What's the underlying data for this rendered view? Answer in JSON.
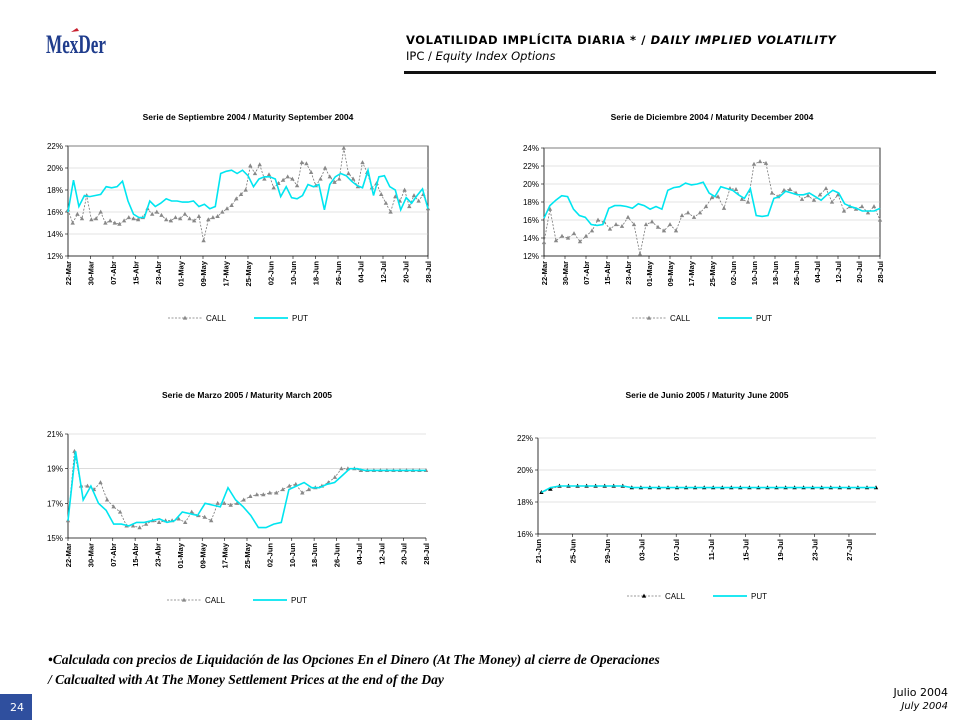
{
  "header": {
    "logo_text": "MexDer",
    "title_es": "VOLATILIDAD IMPLÍCITA DIARIA",
    "title_mark": " * / ",
    "title_en": "DAILY IMPLIED VOLATILITY",
    "sub_es": "IPC / ",
    "sub_en": "Equity Index Options"
  },
  "footnote": {
    "line1": "•Calculada con precios de Liquidación de las Opciones En el Dinero (At The Money) al cierre de Operaciones",
    "line2": " / Calcualted with At The Money Settlement Prices at the end of the Day"
  },
  "footer": {
    "date_es": "Julio 2004",
    "date_en": "July 2004",
    "page_number": "24"
  },
  "colors": {
    "put": "#00e5f0",
    "call_line": "#777777",
    "call_marker": "#888888",
    "call_marker_jun": "#000000",
    "logo_blue": "#1f3c8c",
    "logo_red": "#c8202f"
  },
  "chart_data": [
    {
      "type": "line",
      "title": "Serie de Septiembre 2004 / Maturity September 2004",
      "ylim": [
        12,
        22
      ],
      "y_ticks": [
        "12%",
        "14%",
        "16%",
        "18%",
        "20%",
        "22%"
      ],
      "x_ticks": [
        "22-Mar",
        "30-Mar",
        "07-Abr",
        "15-Abr",
        "23-Abr",
        "01-May",
        "09-May",
        "17-May",
        "25-May",
        "02-Jun",
        "10-Jun",
        "18-Jun",
        "26-Jun",
        "04-Jul",
        "12-Jul",
        "20-Jul",
        "28-Jul"
      ],
      "legend": [
        "CALL",
        "PUT"
      ],
      "series": [
        {
          "name": "CALL",
          "values": [
            16.2,
            15.0,
            15.8,
            15.4,
            17.5,
            15.3,
            15.4,
            16.0,
            15.0,
            15.2,
            15.0,
            14.9,
            15.2,
            15.5,
            15.4,
            15.3,
            15.5,
            16.3,
            15.8,
            16.0,
            15.7,
            15.3,
            15.2,
            15.5,
            15.4,
            15.8,
            15.4,
            15.2,
            15.6,
            13.4,
            15.3,
            15.5,
            15.6,
            16.0,
            16.3,
            16.6,
            17.2,
            17.6,
            18.0,
            20.2,
            19.5,
            20.3,
            19.0,
            19.4,
            18.2,
            18.6,
            18.9,
            19.2,
            19.0,
            18.4,
            20.5,
            20.4,
            19.6,
            18.4,
            19.0,
            20.0,
            19.2,
            18.7,
            19.0,
            21.8,
            19.5,
            19.0,
            18.3,
            20.5,
            19.6,
            18.2,
            18.6,
            17.6,
            16.8,
            16.0,
            17.4,
            17.0,
            18.0,
            16.5,
            17.5,
            17.0,
            17.6,
            16.3
          ],
          "x_start": "22-Mar",
          "x_end": "28-Jul"
        },
        {
          "name": "PUT",
          "values": [
            16.0,
            18.9,
            16.5,
            17.5,
            17.4,
            17.5,
            17.6,
            18.3,
            18.2,
            18.3,
            18.8,
            17.0,
            15.8,
            15.5,
            15.5,
            17.0,
            16.5,
            16.8,
            17.2,
            17.0,
            17.0,
            16.9,
            16.9,
            17.0,
            16.5,
            16.7,
            16.3,
            16.5,
            19.5,
            19.7,
            19.8,
            19.5,
            19.8,
            19.3,
            18.3,
            19.0,
            19.2,
            19.2,
            19.0,
            17.4,
            18.3,
            17.3,
            17.2,
            17.5,
            18.5,
            18.3,
            18.5,
            16.2,
            18.5,
            19.2,
            19.5,
            19.3,
            18.8,
            18.4,
            18.2,
            19.8,
            17.5,
            19.2,
            19.3,
            18.3,
            18.0,
            16.2,
            17.3,
            16.8,
            17.5,
            18.1,
            16.3
          ],
          "x_start": "22-Mar",
          "x_end": "28-Jul"
        }
      ]
    },
    {
      "type": "line",
      "title": "Serie de Diciembre 2004 / Maturity December 2004",
      "ylim": [
        12,
        24
      ],
      "y_ticks": [
        "12%",
        "14%",
        "16%",
        "18%",
        "20%",
        "22%",
        "24%"
      ],
      "x_ticks": [
        "22-Mar",
        "30-Mar",
        "07-Abr",
        "15-Abr",
        "23-Abr",
        "01-May",
        "09-May",
        "17-May",
        "25-May",
        "02-Jun",
        "10-Jun",
        "18-Jun",
        "26-Jun",
        "04-Jul",
        "12-Jul",
        "20-Jul",
        "28-Jul"
      ],
      "legend": [
        "CALL",
        "PUT"
      ],
      "series": [
        {
          "name": "CALL",
          "values": [
            13.5,
            17.2,
            13.7,
            14.2,
            14.0,
            14.5,
            13.6,
            14.2,
            14.8,
            16.0,
            15.8,
            15.0,
            15.5,
            15.3,
            16.3,
            15.5,
            12.2,
            15.5,
            15.8,
            15.2,
            14.8,
            15.5,
            14.8,
            16.5,
            16.8,
            16.3,
            16.8,
            17.5,
            18.5,
            18.6,
            17.3,
            19.5,
            19.4,
            18.3,
            18.0,
            22.2,
            22.5,
            22.3,
            19.0,
            18.6,
            19.3,
            19.4,
            19.0,
            18.3,
            18.7,
            18.2,
            18.8,
            19.5,
            18.0,
            18.8,
            17.0,
            17.5,
            17.2,
            17.5,
            16.8,
            17.5,
            16.0
          ],
          "x_start": "22-Mar",
          "x_end": "28-Jul"
        },
        {
          "name": "PUT",
          "values": [
            16.2,
            17.6,
            18.2,
            18.7,
            18.6,
            17.2,
            16.5,
            16.3,
            15.5,
            15.4,
            15.5,
            17.3,
            17.6,
            17.6,
            17.5,
            17.3,
            17.8,
            17.6,
            17.2,
            17.5,
            17.2,
            19.3,
            19.6,
            19.7,
            20.1,
            19.9,
            20.0,
            20.2,
            19.0,
            18.6,
            19.7,
            19.5,
            19.3,
            18.8,
            18.4,
            19.5,
            16.5,
            16.4,
            16.5,
            18.4,
            18.6,
            19.2,
            19.0,
            18.8,
            18.8,
            19.0,
            18.6,
            18.2,
            18.8,
            19.3,
            19.0,
            17.8,
            17.5,
            17.3,
            17.0,
            17.0,
            17.0,
            17.3
          ],
          "x_start": "22-Mar",
          "x_end": "28-Jul"
        }
      ]
    },
    {
      "type": "line",
      "title": "Serie de Marzo 2005 / Maturity March 2005",
      "ylim": [
        15,
        21
      ],
      "y_ticks": [
        "15%",
        "17%",
        "19%",
        "21%"
      ],
      "x_ticks": [
        "22-Mar",
        "30-Mar",
        "07-Abr",
        "15-Abr",
        "23-Abr",
        "01-May",
        "09-May",
        "17-May",
        "25-May",
        "02-Jun",
        "10-Jun",
        "18-Jun",
        "26-Jun",
        "04-Jul",
        "12-Jul",
        "20-Jul",
        "28-Jul"
      ],
      "legend": [
        "CALL",
        "PUT"
      ],
      "series": [
        {
          "name": "CALL",
          "values": [
            16.0,
            20.0,
            18.0,
            18.0,
            17.8,
            18.2,
            17.2,
            16.8,
            16.5,
            15.7,
            15.7,
            15.6,
            15.8,
            16.0,
            15.9,
            16.0,
            16.0,
            16.1,
            15.9,
            16.5,
            16.3,
            16.2,
            16.0,
            17.0,
            17.0,
            16.9,
            17.0,
            17.2,
            17.4,
            17.5,
            17.5,
            17.6,
            17.6,
            17.8,
            18.0,
            18.1,
            17.6,
            17.8,
            17.9,
            18.0,
            18.2,
            18.5,
            19.0,
            19.0,
            19.0,
            18.9,
            18.9,
            18.9,
            18.9,
            18.9,
            18.9,
            18.9,
            18.9,
            18.9,
            18.9,
            18.9
          ],
          "x_start": "22-Mar",
          "x_end": "28-Jul"
        },
        {
          "name": "PUT",
          "values": [
            16.0,
            20.0,
            17.2,
            18.0,
            17.0,
            16.6,
            15.8,
            15.8,
            15.7,
            15.9,
            15.9,
            16.0,
            16.1,
            15.9,
            16.0,
            16.5,
            16.4,
            16.3,
            17.0,
            16.9,
            16.8,
            17.9,
            17.2,
            16.8,
            16.3,
            15.6,
            15.6,
            15.8,
            15.9,
            17.8,
            18.0,
            18.2,
            17.9,
            17.9,
            18.1,
            18.2,
            18.6,
            19.0,
            19.0,
            18.9,
            18.9,
            18.9,
            18.9,
            18.9,
            18.9,
            18.9,
            18.9,
            18.9
          ],
          "x_start": "22-Mar",
          "x_end": "28-Jul"
        }
      ]
    },
    {
      "type": "line",
      "title": "Serie de Junio 2005 / Maturity June 2005",
      "ylim": [
        16,
        22
      ],
      "y_ticks": [
        "16%",
        "18%",
        "20%",
        "22%"
      ],
      "x_ticks": [
        "21-Jun",
        "25-Jun",
        "29-Jun",
        "03-Jul",
        "07-Jul",
        "11-Jul",
        "15-Jul",
        "19-Jul",
        "23-Jul",
        "27-Jul"
      ],
      "legend": [
        "CALL",
        "PUT"
      ],
      "series": [
        {
          "name": "CALL",
          "values": [
            18.6,
            18.8,
            19.0,
            19.0,
            19.0,
            19.0,
            19.0,
            19.0,
            19.0,
            19.0,
            18.9,
            18.9,
            18.9,
            18.9,
            18.9,
            18.9,
            18.9,
            18.9,
            18.9,
            18.9,
            18.9,
            18.9,
            18.9,
            18.9,
            18.9,
            18.9,
            18.9,
            18.9,
            18.9,
            18.9,
            18.9,
            18.9,
            18.9,
            18.9,
            18.9,
            18.9,
            18.9,
            18.9
          ],
          "x_start": "21-Jun",
          "x_end": "30-Jul"
        },
        {
          "name": "PUT",
          "values": [
            18.6,
            18.9,
            19.0,
            19.0,
            19.0,
            19.0,
            19.0,
            19.0,
            19.0,
            19.0,
            18.9,
            18.9,
            18.9,
            18.9,
            18.9,
            18.9,
            18.9,
            18.9,
            18.9,
            18.9,
            18.9,
            18.9,
            18.9,
            18.9,
            18.9,
            18.9,
            18.9,
            18.9,
            18.9,
            18.9,
            18.9,
            18.9,
            18.9,
            18.9,
            18.9,
            18.9,
            18.9,
            18.9
          ],
          "x_start": "21-Jun",
          "x_end": "30-Jul"
        }
      ]
    }
  ]
}
